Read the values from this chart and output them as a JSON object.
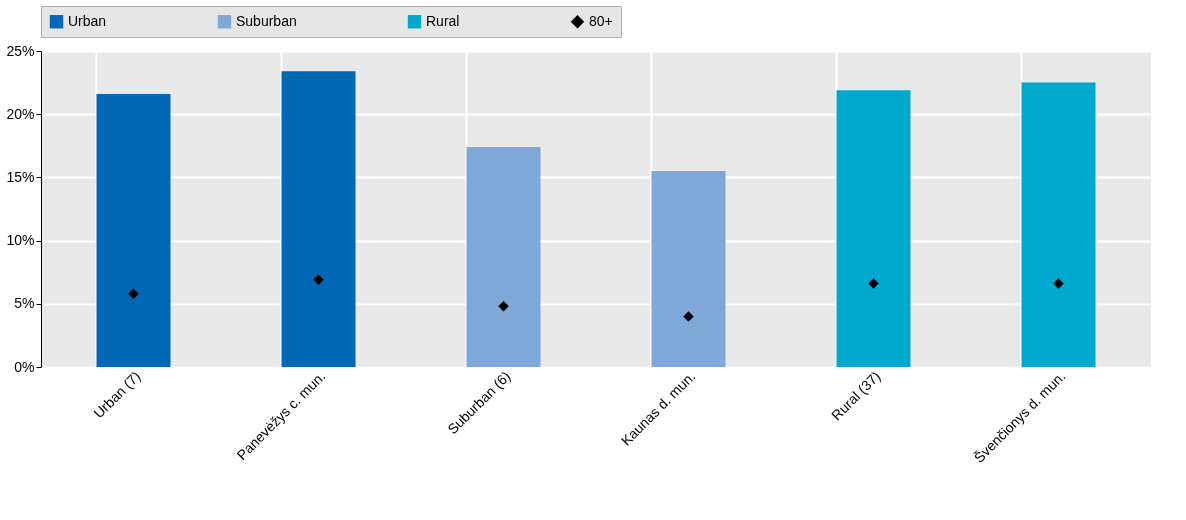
{
  "chart_data": {
    "type": "bar",
    "categories": [
      "Urban (7)",
      "Panevėžys c. mun.",
      "Suburban (6)",
      "Kaunas d. mun.",
      "Rural (37)",
      "Švenčionys d. mun."
    ],
    "series": [
      {
        "name": "Urban",
        "color": "#0068b5",
        "values": [
          21.6,
          23.4,
          null,
          null,
          null,
          null
        ]
      },
      {
        "name": "Suburban",
        "color": "#7fa8d9",
        "values": [
          null,
          null,
          17.4,
          15.5,
          null,
          null
        ]
      },
      {
        "name": "Rural",
        "color": "#00a9ce",
        "values": [
          null,
          null,
          null,
          null,
          21.9,
          22.5
        ]
      },
      {
        "name": "80+",
        "type": "scatter",
        "color": "#000000",
        "marker": "diamond",
        "values": [
          5.8,
          6.9,
          4.8,
          4.0,
          6.6,
          6.6
        ]
      }
    ],
    "ylim": [
      0,
      25
    ],
    "yticks": [
      {
        "value": 0,
        "label": "0%"
      },
      {
        "value": 5,
        "label": "5%"
      },
      {
        "value": 10,
        "label": "10%"
      },
      {
        "value": 15,
        "label": "15%"
      },
      {
        "value": 20,
        "label": "20%"
      },
      {
        "value": 25,
        "label": "25%"
      }
    ],
    "grid": true,
    "legend": "top"
  }
}
